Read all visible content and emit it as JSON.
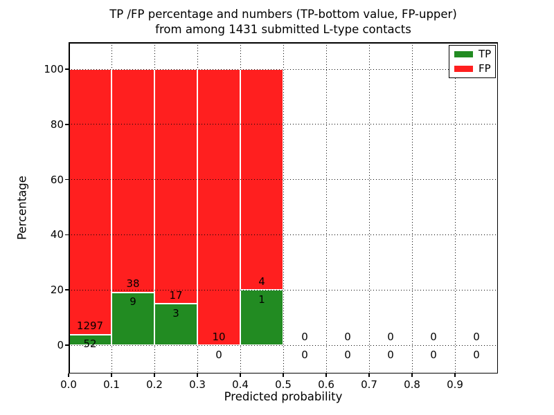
{
  "figure": {
    "title_line1": "TP /FP percentage and numbers (TP-bottom value, FP-upper)",
    "title_line2": "from among 1431 submitted L-type contacts"
  },
  "axes": {
    "xlabel": "Predicted probability",
    "ylabel": "Percentage",
    "x_tick_labels": [
      "0.0",
      "0.1",
      "0.2",
      "0.3",
      "0.4",
      "0.5",
      "0.6",
      "0.7",
      "0.8",
      "0.9"
    ],
    "y_tick_labels": [
      "0",
      "20",
      "40",
      "60",
      "80",
      "100"
    ],
    "xlim": [
      0.0,
      1.0
    ],
    "ylim": [
      -10.5,
      110.0
    ],
    "grid_style": "dotted"
  },
  "legend": {
    "position": "upper right",
    "items": [
      {
        "label": "TP",
        "color": "#228b22"
      },
      {
        "label": "FP",
        "color": "#ff1f1f"
      }
    ]
  },
  "colors": {
    "tp": "#228b22",
    "fp": "#ff1f1f",
    "bar_edge": "#ffffff",
    "grid": "#000000",
    "text": "#000000",
    "background": "#ffffff"
  },
  "chart_data": {
    "type": "bar",
    "stacked": true,
    "title": "TP /FP percentage and numbers (TP-bottom value, FP-upper) from among 1431 submitted L-type contacts",
    "xlabel": "Predicted probability",
    "ylabel": "Percentage",
    "total_submitted": 1431,
    "bin_width": 0.1,
    "grid": true,
    "legend_position": "upper right",
    "series_names": [
      "TP",
      "FP"
    ],
    "bins": [
      {
        "x0": 0.0,
        "x1": 0.1,
        "tp": 52,
        "fp": 1297,
        "tp_pct": 3.86,
        "fp_pct": 96.14
      },
      {
        "x0": 0.1,
        "x1": 0.2,
        "tp": 9,
        "fp": 38,
        "tp_pct": 19.15,
        "fp_pct": 80.85
      },
      {
        "x0": 0.2,
        "x1": 0.3,
        "tp": 3,
        "fp": 17,
        "tp_pct": 15.0,
        "fp_pct": 85.0
      },
      {
        "x0": 0.3,
        "x1": 0.4,
        "tp": 0,
        "fp": 10,
        "tp_pct": 0.0,
        "fp_pct": 100.0
      },
      {
        "x0": 0.4,
        "x1": 0.5,
        "tp": 1,
        "fp": 4,
        "tp_pct": 20.0,
        "fp_pct": 80.0
      },
      {
        "x0": 0.5,
        "x1": 0.6,
        "tp": 0,
        "fp": 0,
        "tp_pct": 0.0,
        "fp_pct": 0.0
      },
      {
        "x0": 0.6,
        "x1": 0.7,
        "tp": 0,
        "fp": 0,
        "tp_pct": 0.0,
        "fp_pct": 0.0
      },
      {
        "x0": 0.7,
        "x1": 0.8,
        "tp": 0,
        "fp": 0,
        "tp_pct": 0.0,
        "fp_pct": 0.0
      },
      {
        "x0": 0.8,
        "x1": 0.9,
        "tp": 0,
        "fp": 0,
        "tp_pct": 0.0,
        "fp_pct": 0.0
      },
      {
        "x0": 0.9,
        "x1": 1.0,
        "tp": 0,
        "fp": 0,
        "tp_pct": 0.0,
        "fp_pct": 0.0
      }
    ]
  }
}
